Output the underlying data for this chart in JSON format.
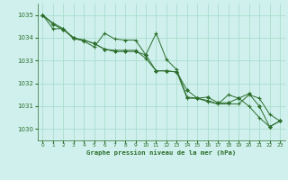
{
  "title": "Graphe pression niveau de la mer (hPa)",
  "background_color": "#cff0ec",
  "grid_color": "#aaddcc",
  "line_color": "#2d6e2d",
  "xlim": [
    -0.5,
    23.5
  ],
  "ylim": [
    1029.5,
    1035.5
  ],
  "yticks": [
    1030,
    1031,
    1032,
    1033,
    1034,
    1035
  ],
  "xticks": [
    0,
    1,
    2,
    3,
    4,
    5,
    6,
    7,
    8,
    9,
    10,
    11,
    12,
    13,
    14,
    15,
    16,
    17,
    18,
    19,
    20,
    21,
    22,
    23
  ],
  "series1": {
    "x": [
      0,
      1,
      2,
      3,
      4,
      5,
      6,
      7,
      8,
      9,
      10,
      11,
      12,
      13,
      14,
      15,
      16,
      17,
      18,
      19,
      20,
      21,
      22,
      23
    ],
    "y": [
      1035.0,
      1034.65,
      1034.4,
      1034.0,
      1033.85,
      1033.6,
      1034.2,
      1033.95,
      1033.9,
      1033.9,
      1033.25,
      1034.2,
      1033.05,
      1032.6,
      1031.4,
      1031.35,
      1031.2,
      1031.1,
      1031.5,
      1031.35,
      1031.0,
      1030.5,
      1030.1,
      1030.35
    ]
  },
  "series2": {
    "x": [
      0,
      1,
      2,
      3,
      4,
      5,
      6,
      7,
      8,
      9,
      10,
      11,
      12,
      13,
      14,
      15,
      16,
      17,
      18,
      19,
      20,
      21,
      22,
      23
    ],
    "y": [
      1035.0,
      1034.4,
      1034.4,
      1033.95,
      1033.9,
      1033.75,
      1033.5,
      1033.45,
      1033.45,
      1033.45,
      1033.1,
      1032.55,
      1032.55,
      1032.5,
      1031.35,
      1031.35,
      1031.25,
      1031.1,
      1031.1,
      1031.1,
      1031.5,
      1031.35,
      1030.65,
      1030.35
    ]
  },
  "series3": {
    "x": [
      0,
      1,
      2,
      3,
      4,
      5,
      6,
      7,
      8,
      9,
      10,
      11,
      12,
      13,
      14,
      15,
      16,
      17,
      18,
      19,
      20,
      21,
      22,
      23
    ],
    "y": [
      1035.0,
      1034.6,
      1034.35,
      1034.0,
      1033.9,
      1033.75,
      1033.5,
      1033.4,
      1033.4,
      1033.4,
      1033.25,
      1032.55,
      1032.55,
      1032.5,
      1031.7,
      1031.35,
      1031.4,
      1031.15,
      1031.15,
      1031.35,
      1031.55,
      1031.0,
      1030.1,
      1030.35
    ]
  }
}
